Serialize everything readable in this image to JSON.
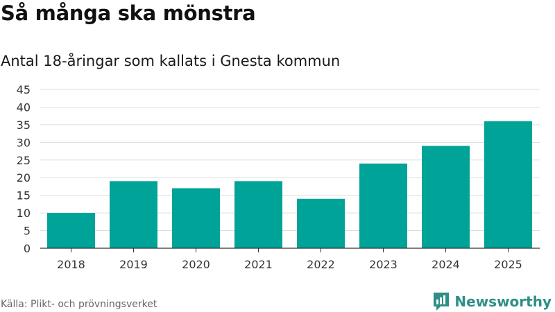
{
  "header": {
    "title": "Så många ska mönstra",
    "subtitle": "Antal 18-åringar som kallats i Gnesta kommun"
  },
  "footer": {
    "source": "Källa: Plikt- och prövningsverket",
    "brand": "Newsworthy"
  },
  "colors": {
    "bar": "#00a398",
    "grid": "#dddddd",
    "axis": "#333333",
    "brand": "#2d8f87"
  },
  "chart_data": {
    "type": "bar",
    "categories": [
      "2018",
      "2019",
      "2020",
      "2021",
      "2022",
      "2023",
      "2024",
      "2025"
    ],
    "values": [
      10,
      19,
      17,
      19,
      14,
      24,
      29,
      36
    ],
    "yticks": [
      0,
      5,
      10,
      15,
      20,
      25,
      30,
      35,
      40,
      45
    ],
    "ylim": [
      0,
      45
    ],
    "grid": true,
    "legend": "none"
  }
}
